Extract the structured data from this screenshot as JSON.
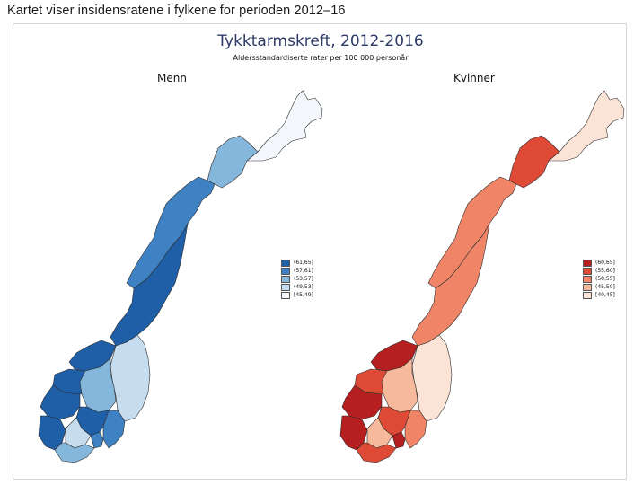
{
  "caption": "Kartet viser insidensratene i fylkene for perioden 2012–16",
  "figure": {
    "title": "Tykktarmskreft, 2012-2016",
    "subtitle": "Aldersstandardiserte rater per 100 000 personår"
  },
  "panels": [
    {
      "label": "Menn",
      "legend": [
        {
          "label": "(61,65]",
          "color": "#1f5fa8"
        },
        {
          "label": "(57,61]",
          "color": "#3f82c3"
        },
        {
          "label": "(53,57]",
          "color": "#85b6dc"
        },
        {
          "label": "(49,53]",
          "color": "#c6dcef"
        },
        {
          "label": "[45,49]",
          "color": "#f3f7fc"
        }
      ]
    },
    {
      "label": "Kvinner",
      "legend": [
        {
          "label": "(60,65]",
          "color": "#b51f1f"
        },
        {
          "label": "(55,60]",
          "color": "#df4a37"
        },
        {
          "label": "(50,55]",
          "color": "#ef8467"
        },
        {
          "label": "(45,50]",
          "color": "#f7b99b"
        },
        {
          "label": "[40,45]",
          "color": "#fbe4d6"
        }
      ]
    }
  ]
}
